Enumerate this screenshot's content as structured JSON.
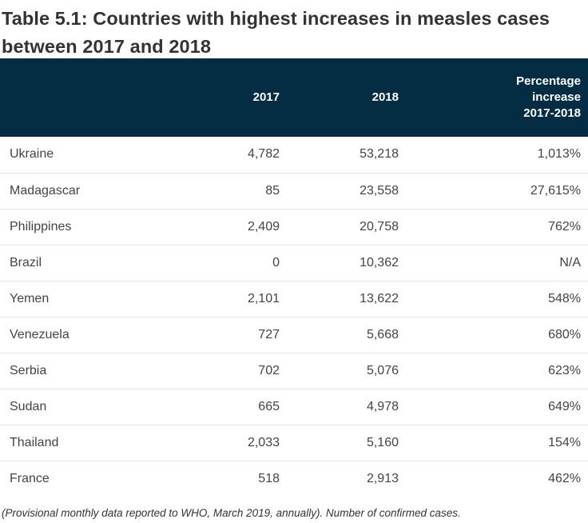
{
  "title": "Table 5.1: Countries with highest increases in measles cases between 2017 and 2018",
  "header": {
    "country": "",
    "y2017": "2017",
    "y2018": "2018",
    "pct_line1": "Percentage",
    "pct_line2": "increase",
    "pct_line3": "2017-2018"
  },
  "rows": [
    {
      "country": "Ukraine",
      "y2017": "4,782",
      "y2018": "53,218",
      "pct": "1,013%"
    },
    {
      "country": "Madagascar",
      "y2017": "85",
      "y2018": "23,558",
      "pct": "27,615%"
    },
    {
      "country": "Philippines",
      "y2017": "2,409",
      "y2018": "20,758",
      "pct": "762%"
    },
    {
      "country": "Brazil",
      "y2017": "0",
      "y2018": "10,362",
      "pct": "N/A"
    },
    {
      "country": "Yemen",
      "y2017": "2,101",
      "y2018": "13,622",
      "pct": "548%"
    },
    {
      "country": "Venezuela",
      "y2017": "727",
      "y2018": "5,668",
      "pct": "680%"
    },
    {
      "country": "Serbia",
      "y2017": "702",
      "y2018": "5,076",
      "pct": "623%"
    },
    {
      "country": "Sudan",
      "y2017": "665",
      "y2018": "4,978",
      "pct": "649%"
    },
    {
      "country": "Thailand",
      "y2017": "2,033",
      "y2018": "5,160",
      "pct": "154%"
    },
    {
      "country": "France",
      "y2017": "518",
      "y2018": "2,913",
      "pct": "462%"
    }
  ],
  "note": "(Provisional monthly data reported to WHO, March 2019, annually). Number of confirmed cases.",
  "colors": {
    "header_bg": "#042d44",
    "header_text": "#ffffff",
    "row_divider": "#e6e6e6"
  }
}
